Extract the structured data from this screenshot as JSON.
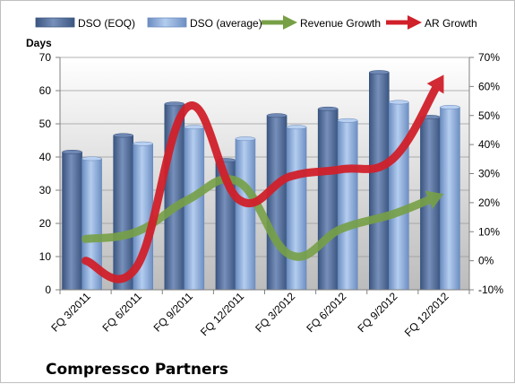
{
  "chart_data": {
    "type": "bar",
    "title": "Compressco Partners",
    "ylabel": "Days",
    "ylim": [
      0,
      70
    ],
    "y_ticks": [
      "0",
      "10",
      "20",
      "30",
      "40",
      "50",
      "60",
      "70"
    ],
    "y2lim": [
      -10,
      70
    ],
    "y2_ticks": [
      "-10%",
      "0%",
      "10%",
      "20%",
      "30%",
      "40%",
      "50%",
      "60%",
      "70%"
    ],
    "categories": [
      "FQ 3/2011",
      "FQ 6/2011",
      "FQ 9/2011",
      "FQ 12/2011",
      "FQ 3/2012",
      "FQ 6/2012",
      "FQ 9/2012",
      "FQ 12/2012"
    ],
    "legend_position": "top",
    "series": [
      {
        "name": "DSO (EOQ)",
        "kind": "bar",
        "axis": "left",
        "color": "#4f6d9e",
        "values": [
          41.5,
          46.5,
          56,
          39,
          52.5,
          54.5,
          65.5,
          52
        ]
      },
      {
        "name": "DSO (average)",
        "kind": "bar",
        "axis": "left",
        "color": "#8eaedc",
        "values": [
          39.5,
          44,
          49,
          45.5,
          49,
          51,
          56.5,
          55
        ]
      },
      {
        "name": "Revenue Growth",
        "kind": "line",
        "axis": "right",
        "unit": "%",
        "color": "#77a046",
        "values": [
          7.5,
          10,
          21,
          27,
          2,
          11,
          16,
          23
        ]
      },
      {
        "name": "AR Growth",
        "kind": "line",
        "axis": "right",
        "unit": "%",
        "color": "#d0202a",
        "values": [
          0,
          -2,
          53,
          21,
          29,
          31.5,
          35,
          64
        ]
      }
    ]
  }
}
